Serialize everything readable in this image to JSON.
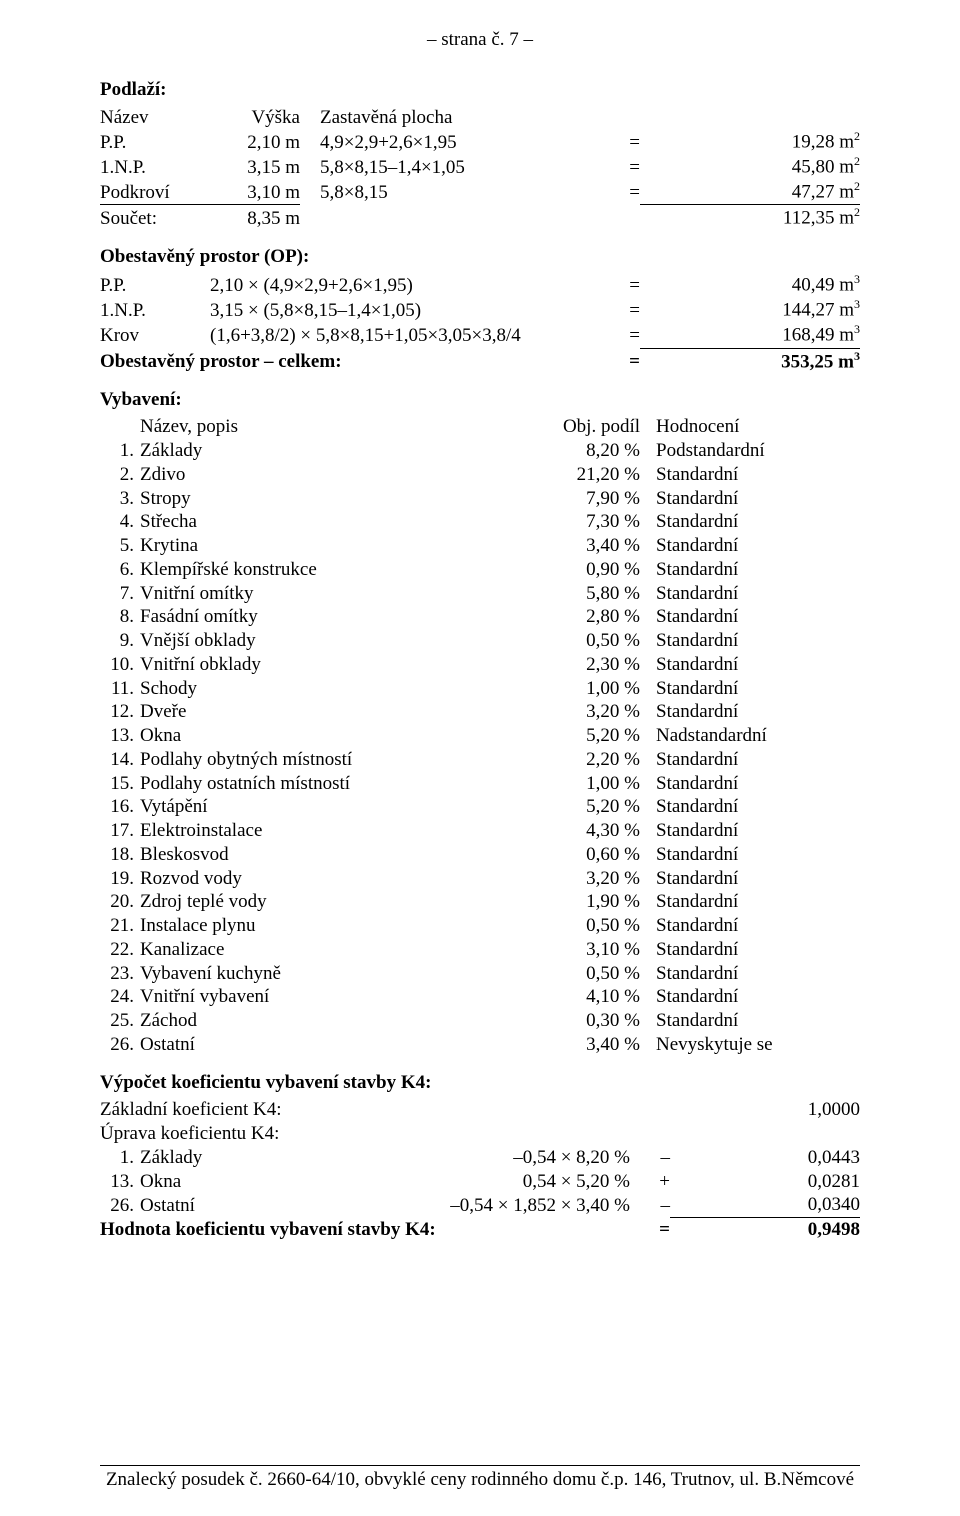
{
  "header": "– strana č. 7 –",
  "podlazi": {
    "title": "Podlaží:",
    "cols": [
      "Název",
      "Výška",
      "Zastavěná plocha"
    ],
    "rows": [
      {
        "name": "P.P.",
        "h": "2,10 m",
        "expr": "4,9×2,9+2,6×1,95",
        "eq": "=",
        "val": "19,28 m",
        "sup": "2"
      },
      {
        "name": "1.N.P.",
        "h": "3,15 m",
        "expr": "5,8×8,15–1,4×1,05",
        "eq": "=",
        "val": "45,80 m",
        "sup": "2"
      },
      {
        "name": "Podkroví",
        "h": "3,10 m",
        "expr": "5,8×8,15",
        "eq": "=",
        "val": "47,27 m",
        "sup": "2"
      }
    ],
    "sum": {
      "name": "Součet:",
      "h": "8,35 m",
      "val": "112,35 m",
      "sup": "2"
    }
  },
  "op": {
    "title": "Obestavěný prostor (OP):",
    "rows": [
      {
        "name": "P.P.",
        "expr": "2,10 × (4,9×2,9+2,6×1,95)",
        "eq": "=",
        "val": "40,49 m",
        "sup": "3"
      },
      {
        "name": "1.N.P.",
        "expr": "3,15 × (5,8×8,15–1,4×1,05)",
        "eq": "=",
        "val": "144,27 m",
        "sup": "3"
      },
      {
        "name": "Krov",
        "expr": "(1,6+3,8/2) × 5,8×8,15+1,05×3,05×3,8/4",
        "eq": "=",
        "val": "168,49 m",
        "sup": "3"
      }
    ],
    "sum": {
      "name": "Obestavěný prostor – celkem:",
      "eq": "=",
      "val": "353,25 m",
      "sup": "3"
    }
  },
  "vyb": {
    "title": "Vybavení:",
    "cols": [
      "Název, popis",
      "Obj. podíl",
      "Hodnocení"
    ],
    "rows": [
      {
        "n": "1.",
        "name": "Základy",
        "pct": "8,20 %",
        "rating": "Podstandardní"
      },
      {
        "n": "2.",
        "name": "Zdivo",
        "pct": "21,20 %",
        "rating": "Standardní"
      },
      {
        "n": "3.",
        "name": "Stropy",
        "pct": "7,90 %",
        "rating": "Standardní"
      },
      {
        "n": "4.",
        "name": "Střecha",
        "pct": "7,30 %",
        "rating": "Standardní"
      },
      {
        "n": "5.",
        "name": "Krytina",
        "pct": "3,40 %",
        "rating": "Standardní"
      },
      {
        "n": "6.",
        "name": "Klempířské konstrukce",
        "pct": "0,90 %",
        "rating": "Standardní"
      },
      {
        "n": "7.",
        "name": "Vnitřní omítky",
        "pct": "5,80 %",
        "rating": "Standardní"
      },
      {
        "n": "8.",
        "name": "Fasádní omítky",
        "pct": "2,80 %",
        "rating": "Standardní"
      },
      {
        "n": "9.",
        "name": "Vnější obklady",
        "pct": "0,50 %",
        "rating": "Standardní"
      },
      {
        "n": "10.",
        "name": "Vnitřní obklady",
        "pct": "2,30 %",
        "rating": "Standardní"
      },
      {
        "n": "11.",
        "name": "Schody",
        "pct": "1,00 %",
        "rating": "Standardní"
      },
      {
        "n": "12.",
        "name": "Dveře",
        "pct": "3,20 %",
        "rating": "Standardní"
      },
      {
        "n": "13.",
        "name": "Okna",
        "pct": "5,20 %",
        "rating": "Nadstandardní"
      },
      {
        "n": "14.",
        "name": "Podlahy obytných místností",
        "pct": "2,20 %",
        "rating": "Standardní"
      },
      {
        "n": "15.",
        "name": "Podlahy ostatních místností",
        "pct": "1,00 %",
        "rating": "Standardní"
      },
      {
        "n": "16.",
        "name": "Vytápění",
        "pct": "5,20 %",
        "rating": "Standardní"
      },
      {
        "n": "17.",
        "name": "Elektroinstalace",
        "pct": "4,30 %",
        "rating": "Standardní"
      },
      {
        "n": "18.",
        "name": "Bleskosvod",
        "pct": "0,60 %",
        "rating": "Standardní"
      },
      {
        "n": "19.",
        "name": "Rozvod vody",
        "pct": "3,20 %",
        "rating": "Standardní"
      },
      {
        "n": "20.",
        "name": "Zdroj teplé vody",
        "pct": "1,90 %",
        "rating": "Standardní"
      },
      {
        "n": "21.",
        "name": "Instalace plynu",
        "pct": "0,50 %",
        "rating": "Standardní"
      },
      {
        "n": "22.",
        "name": "Kanalizace",
        "pct": "3,10 %",
        "rating": "Standardní"
      },
      {
        "n": "23.",
        "name": "Vybavení kuchyně",
        "pct": "0,50 %",
        "rating": "Standardní"
      },
      {
        "n": "24.",
        "name": "Vnitřní vybavení",
        "pct": "4,10 %",
        "rating": "Standardní"
      },
      {
        "n": "25.",
        "name": "Záchod",
        "pct": "0,30 %",
        "rating": "Standardní"
      },
      {
        "n": "26.",
        "name": "Ostatní",
        "pct": "3,40 %",
        "rating": "Nevyskytuje se"
      }
    ]
  },
  "koef": {
    "title": "Výpočet koeficientu vybavení stavby K4:",
    "base_label": "Základní koeficient K4:",
    "base_val": "1,0000",
    "adj_label": "Úprava koeficientu K4:",
    "rows": [
      {
        "n": "1.",
        "name": "Základy",
        "expr": "–0,54 × 8,20 %",
        "sign": "–",
        "val": "0,0443"
      },
      {
        "n": "13.",
        "name": "Okna",
        "expr": "0,54 × 5,20 %",
        "sign": "+",
        "val": "0,0281"
      },
      {
        "n": "26.",
        "name": "Ostatní",
        "expr": "–0,54 × 1,852 × 3,40 %",
        "sign": "–",
        "val": "0,0340"
      }
    ],
    "result_label": "Hodnota koeficientu vybavení stavby K4:",
    "result_eq": "=",
    "result_val": "0,9498"
  },
  "footer": "Znalecký posudek č. 2660-64/10, obvyklé ceny rodinného domu č.p. 146, Trutnov, ul. B.Němcové"
}
